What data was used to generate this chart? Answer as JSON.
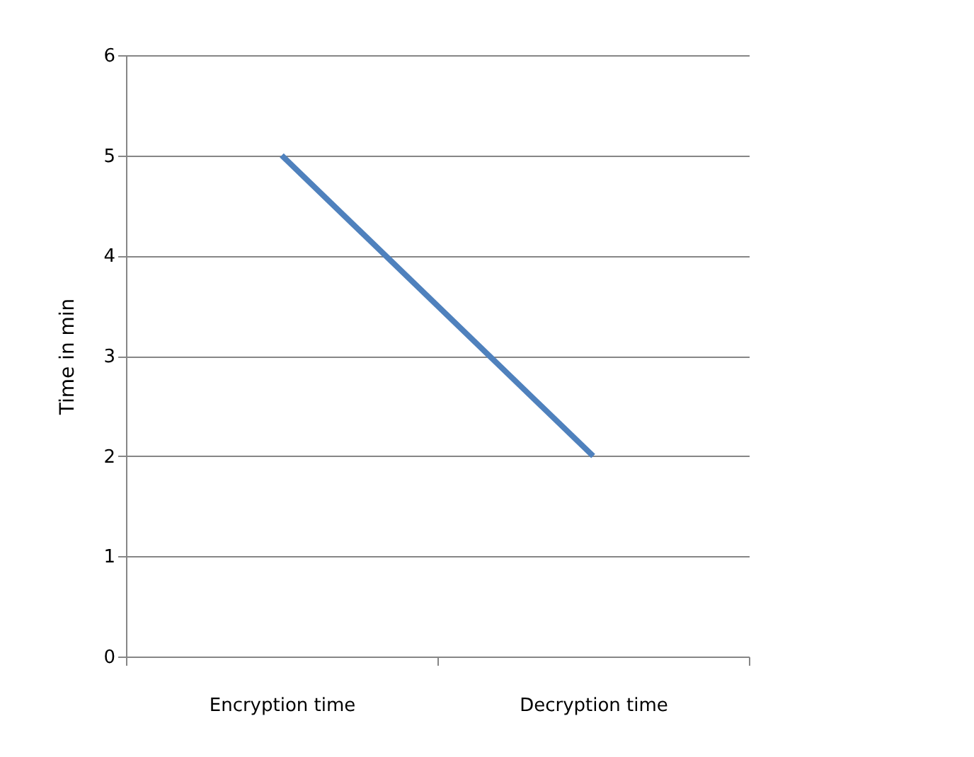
{
  "chart_data": {
    "type": "line",
    "ylabel": "Time in min",
    "categories": [
      "Encryption time",
      "Decryption time"
    ],
    "series": [
      {
        "color": "#4f81bd",
        "values": [
          5,
          2
        ]
      }
    ],
    "ylim": [
      0,
      6
    ],
    "yticks": [
      0,
      1,
      2,
      3,
      4,
      5,
      6
    ],
    "grid": "y",
    "legend": false,
    "marker": "none",
    "line_style": "solid"
  }
}
